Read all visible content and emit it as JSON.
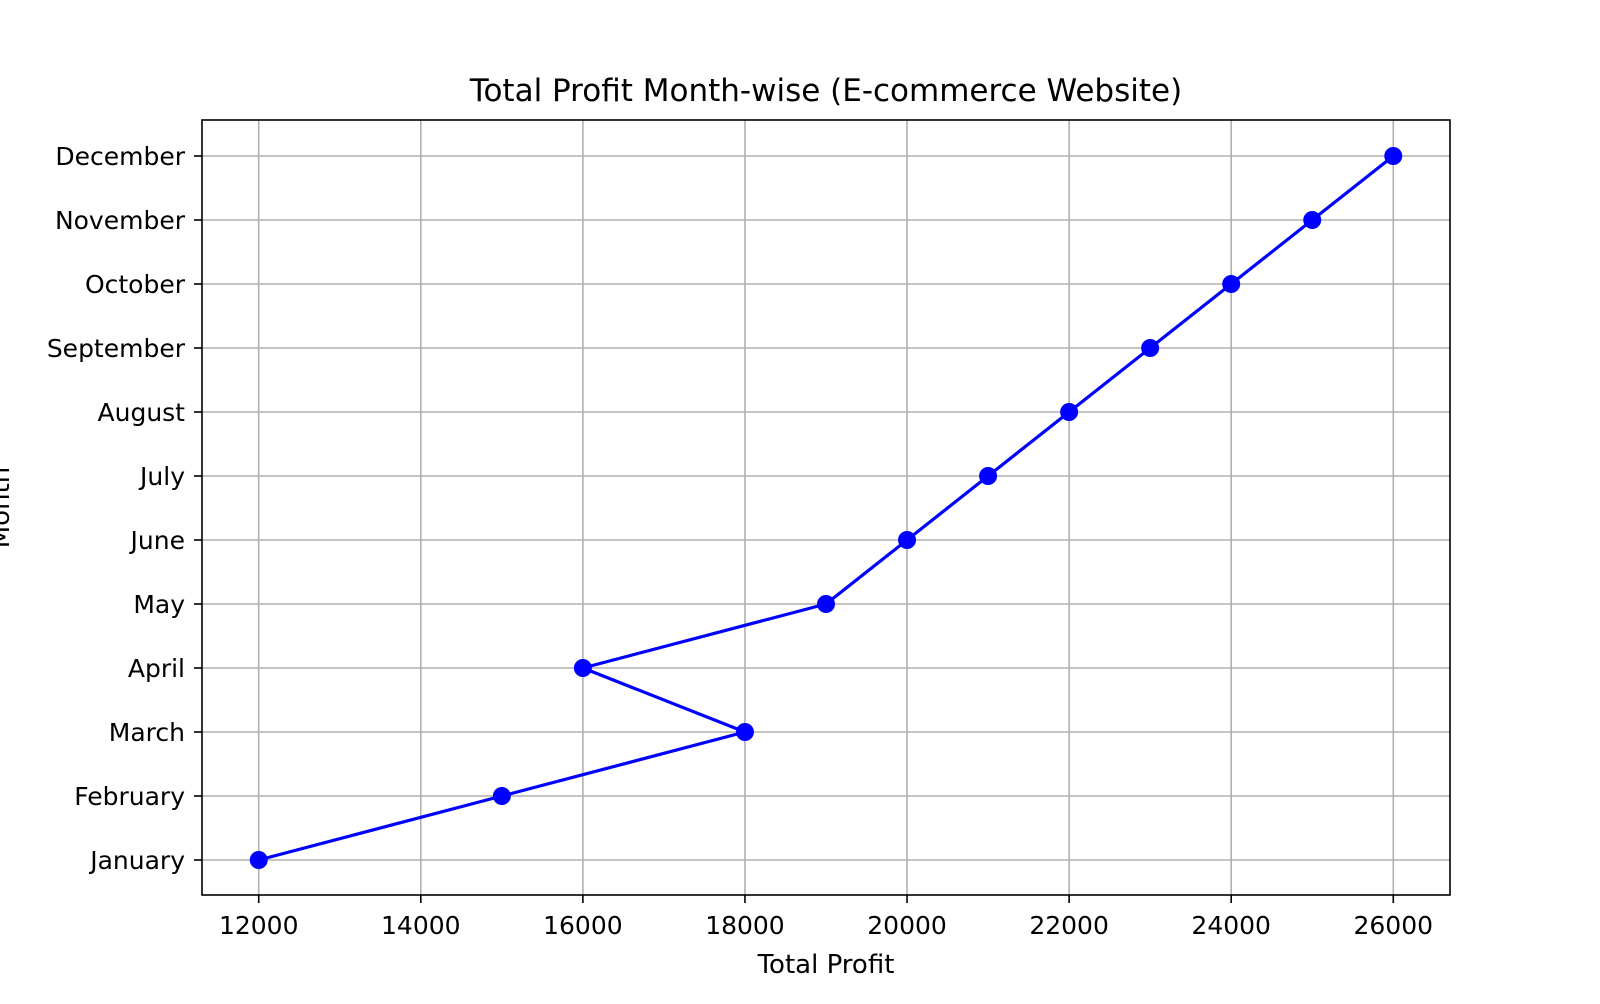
{
  "chart_data": {
    "type": "line",
    "title": "Total Profit Month-wise (E-commerce Website)",
    "xlabel": "Total Profit",
    "ylabel": "Month",
    "categories": [
      "January",
      "February",
      "March",
      "April",
      "May",
      "June",
      "July",
      "August",
      "September",
      "October",
      "November",
      "December"
    ],
    "series": [
      {
        "values": [
          12000,
          15000,
          18000,
          16000,
          19000,
          20000,
          21000,
          22000,
          23000,
          24000,
          25000,
          26000
        ],
        "color": "#0000ff",
        "marker": "circle"
      }
    ],
    "xticks": [
      12000,
      14000,
      16000,
      18000,
      20000,
      22000,
      24000,
      26000
    ],
    "xlim": [
      11300,
      26700
    ],
    "grid": true,
    "orientation": "values-on-x, categories-on-y"
  }
}
